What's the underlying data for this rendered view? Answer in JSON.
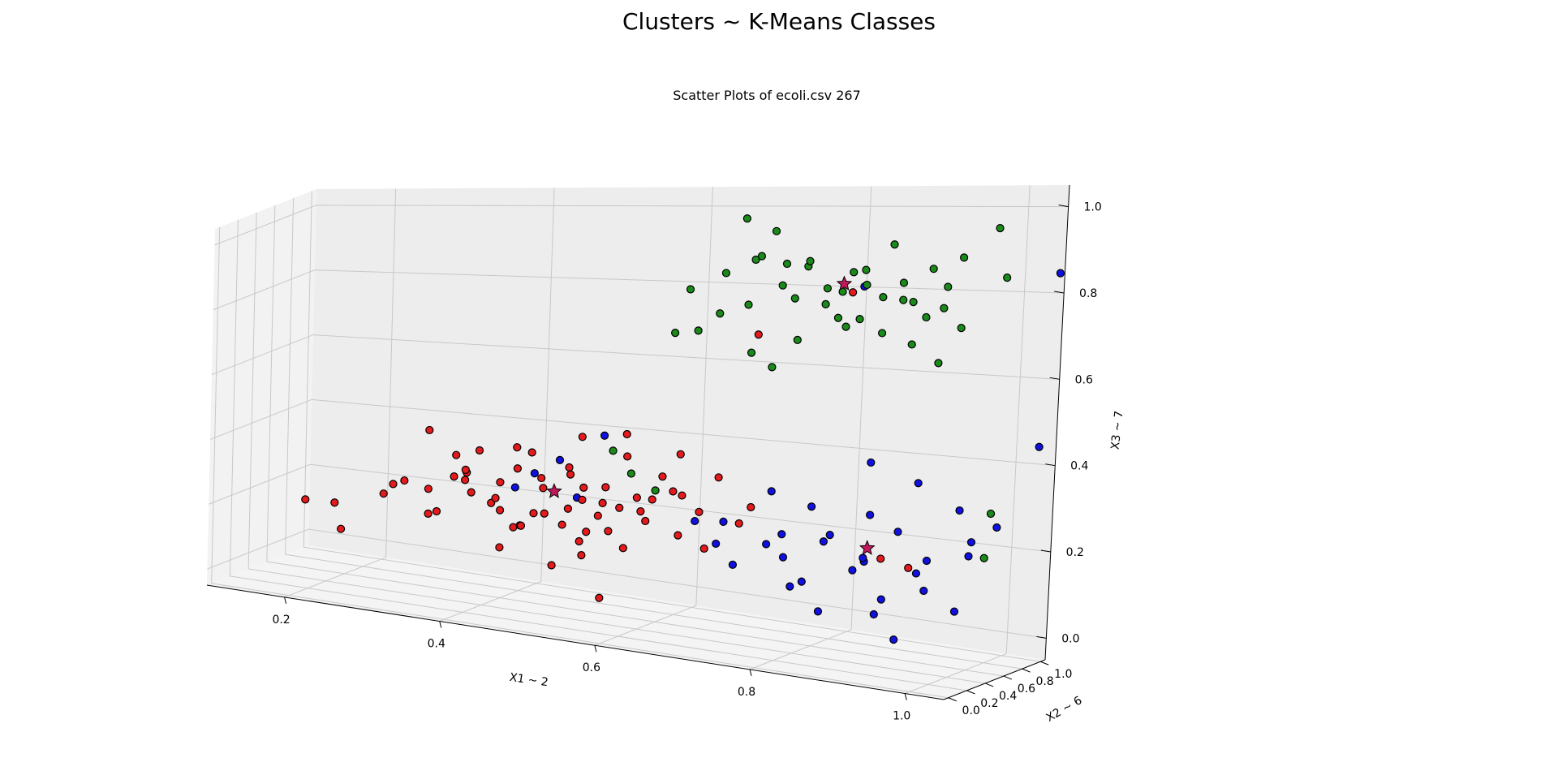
{
  "figure": {
    "title": "Clusters ~ K-Means Classes",
    "subtitle": "Scatter Plots of ecoli.csv 267"
  },
  "chart_data": {
    "type": "scatter",
    "projection": "3d",
    "title": "Scatter Plots of ecoli.csv 267",
    "xlabel": "X1 ~ 2",
    "ylabel": "X2 ~ 6",
    "zlabel": "X3 ~ 7",
    "xlim": [
      0.1,
      1.05
    ],
    "ylim": [
      -0.05,
      1.05
    ],
    "zlim": [
      -0.05,
      1.05
    ],
    "xticks": [
      "0.2",
      "0.4",
      "0.6",
      "0.8",
      "1.0"
    ],
    "yticks": [
      "0.0",
      "0.2",
      "0.4",
      "0.6",
      "0.8",
      "1.0"
    ],
    "zticks": [
      "0.0",
      "0.2",
      "0.4",
      "0.6",
      "0.8",
      "1.0"
    ],
    "grid": true,
    "colors": {
      "cluster_red": "#e41a1c",
      "cluster_green": "#1a8a1a",
      "cluster_blue": "#1010e0",
      "edge": "#000000",
      "pane": "#f2f2f2",
      "grid": "#c8c8c8"
    },
    "series": [
      {
        "color": "#e41a1c",
        "points": [
          [
            0.32,
            0.2,
            0.3
          ],
          [
            0.36,
            0.22,
            0.22
          ],
          [
            0.4,
            0.25,
            0.28
          ],
          [
            0.42,
            0.3,
            0.25
          ],
          [
            0.44,
            0.22,
            0.32
          ],
          [
            0.46,
            0.28,
            0.2
          ],
          [
            0.48,
            0.35,
            0.3
          ],
          [
            0.5,
            0.2,
            0.25
          ],
          [
            0.52,
            0.3,
            0.35
          ],
          [
            0.54,
            0.25,
            0.18
          ],
          [
            0.56,
            0.32,
            0.28
          ],
          [
            0.58,
            0.22,
            0.22
          ],
          [
            0.6,
            0.35,
            0.3
          ],
          [
            0.62,
            0.28,
            0.25
          ],
          [
            0.64,
            0.4,
            0.32
          ],
          [
            0.45,
            0.15,
            0.15
          ],
          [
            0.5,
            0.4,
            0.2
          ],
          [
            0.55,
            0.18,
            0.3
          ],
          [
            0.48,
            0.12,
            0.22
          ],
          [
            0.6,
            0.22,
            0.18
          ],
          [
            0.38,
            0.35,
            0.3
          ],
          [
            0.42,
            0.4,
            0.22
          ],
          [
            0.66,
            0.3,
            0.22
          ],
          [
            0.68,
            0.35,
            0.28
          ],
          [
            0.7,
            0.25,
            0.2
          ],
          [
            0.52,
            0.45,
            0.3
          ],
          [
            0.47,
            0.3,
            0.4
          ],
          [
            0.53,
            0.33,
            0.45
          ],
          [
            0.58,
            0.4,
            0.4
          ],
          [
            0.62,
            0.45,
            0.35
          ],
          [
            0.4,
            0.18,
            0.35
          ],
          [
            0.44,
            0.38,
            0.18
          ],
          [
            0.56,
            0.15,
            0.22
          ],
          [
            0.34,
            0.3,
            0.2
          ],
          [
            0.3,
            0.25,
            0.28
          ],
          [
            0.36,
            0.4,
            0.3
          ],
          [
            0.64,
            0.5,
            0.3
          ],
          [
            0.72,
            0.45,
            0.25
          ],
          [
            0.74,
            0.4,
            0.3
          ],
          [
            0.68,
            0.55,
            0.35
          ],
          [
            0.2,
            0.15,
            0.22
          ],
          [
            0.22,
            0.3,
            0.2
          ],
          [
            0.25,
            0.12,
            0.15
          ],
          [
            0.5,
            0.3,
            0.1
          ],
          [
            0.54,
            0.28,
            0.14
          ],
          [
            0.46,
            0.22,
            0.42
          ],
          [
            0.59,
            0.3,
            0.47
          ],
          [
            0.65,
            0.38,
            0.42
          ],
          [
            0.51,
            0.37,
            0.36
          ],
          [
            0.57,
            0.26,
            0.33
          ],
          [
            0.43,
            0.26,
            0.27
          ],
          [
            0.49,
            0.24,
            0.34
          ],
          [
            0.61,
            0.31,
            0.27
          ],
          [
            0.53,
            0.2,
            0.27
          ],
          [
            0.47,
            0.34,
            0.23
          ],
          [
            0.55,
            0.36,
            0.24
          ],
          [
            0.39,
            0.28,
            0.33
          ],
          [
            0.63,
            0.26,
            0.31
          ],
          [
            0.57,
            0.42,
            0.26
          ],
          [
            0.45,
            0.32,
            0.35
          ],
          [
            0.58,
            0.15,
            0.05
          ],
          [
            0.95,
            0.35,
            0.2
          ],
          [
            0.92,
            0.3,
            0.22
          ],
          [
            0.7,
            0.75,
            0.7
          ],
          [
            0.8,
            0.9,
            0.8
          ],
          [
            0.35,
            0.2,
            0.45
          ],
          [
            0.41,
            0.24,
            0.4
          ],
          [
            0.37,
            0.33,
            0.37
          ],
          [
            0.33,
            0.38,
            0.26
          ],
          [
            0.28,
            0.32,
            0.24
          ]
        ]
      },
      {
        "color": "#1a8a1a",
        "points": [
          [
            0.6,
            0.85,
            0.8
          ],
          [
            0.65,
            0.8,
            0.85
          ],
          [
            0.7,
            0.75,
            0.9
          ],
          [
            0.75,
            0.85,
            0.88
          ],
          [
            0.8,
            0.9,
            0.85
          ],
          [
            0.85,
            0.8,
            0.8
          ],
          [
            0.9,
            0.85,
            0.75
          ],
          [
            0.95,
            0.8,
            0.9
          ],
          [
            1.0,
            0.85,
            0.85
          ],
          [
            0.7,
            0.9,
            0.95
          ],
          [
            0.75,
            0.7,
            0.8
          ],
          [
            0.8,
            0.75,
            0.75
          ],
          [
            0.85,
            0.9,
            0.92
          ],
          [
            0.65,
            0.75,
            0.75
          ],
          [
            0.9,
            0.7,
            0.8
          ],
          [
            0.72,
            0.82,
            0.82
          ],
          [
            0.78,
            0.78,
            0.78
          ],
          [
            0.82,
            0.86,
            0.86
          ],
          [
            0.88,
            0.76,
            0.84
          ],
          [
            0.68,
            0.86,
            0.88
          ],
          [
            0.62,
            0.78,
            0.7
          ],
          [
            0.74,
            0.92,
            0.86
          ],
          [
            0.86,
            0.72,
            0.72
          ],
          [
            0.92,
            0.9,
            0.82
          ],
          [
            0.76,
            0.66,
            0.7
          ],
          [
            0.84,
            0.64,
            0.76
          ],
          [
            0.96,
            0.72,
            0.74
          ],
          [
            0.7,
            0.68,
            0.66
          ],
          [
            0.66,
            0.92,
            0.98
          ],
          [
            0.98,
            0.92,
            0.96
          ],
          [
            0.8,
            0.84,
            0.72
          ],
          [
            0.88,
            0.88,
            0.68
          ],
          [
            0.94,
            0.66,
            0.66
          ],
          [
            0.6,
            0.7,
            0.7
          ],
          [
            0.72,
            0.74,
            0.62
          ],
          [
            0.77,
            0.88,
            0.81
          ],
          [
            0.83,
            0.79,
            0.83
          ],
          [
            0.91,
            0.82,
            0.87
          ],
          [
            0.73,
            0.77,
            0.88
          ],
          [
            0.87,
            0.85,
            0.79
          ],
          [
            0.55,
            0.5,
            0.4
          ],
          [
            0.6,
            0.55,
            0.3
          ],
          [
            0.58,
            0.45,
            0.35
          ],
          [
            1.0,
            0.8,
            0.3
          ],
          [
            1.0,
            0.75,
            0.2
          ],
          [
            0.68,
            0.8,
            0.77
          ],
          [
            0.81,
            0.7,
            0.82
          ],
          [
            0.93,
            0.78,
            0.78
          ]
        ]
      },
      {
        "color": "#1010e0",
        "points": [
          [
            0.7,
            0.45,
            0.25
          ],
          [
            0.75,
            0.5,
            0.2
          ],
          [
            0.8,
            0.55,
            0.3
          ],
          [
            0.85,
            0.6,
            0.15
          ],
          [
            0.9,
            0.65,
            0.25
          ],
          [
            0.95,
            0.55,
            0.2
          ],
          [
            1.0,
            0.6,
            0.25
          ],
          [
            0.72,
            0.4,
            0.15
          ],
          [
            0.78,
            0.65,
            0.1
          ],
          [
            0.82,
            0.5,
            0.05
          ],
          [
            0.88,
            0.45,
            0.2
          ],
          [
            0.92,
            0.7,
            0.15
          ],
          [
            0.98,
            0.75,
            0.2
          ],
          [
            0.76,
            0.58,
            0.22
          ],
          [
            0.84,
            0.42,
            0.25
          ],
          [
            0.86,
            0.68,
            0.28
          ],
          [
            0.9,
            0.5,
            0.1
          ],
          [
            0.94,
            0.62,
            0.12
          ],
          [
            0.74,
            0.62,
            0.32
          ],
          [
            0.8,
            0.7,
            0.2
          ],
          [
            0.68,
            0.55,
            0.18
          ],
          [
            0.66,
            0.48,
            0.24
          ],
          [
            1.0,
            0.45,
            0.1
          ],
          [
            1.02,
            0.7,
            0.28
          ],
          [
            0.96,
            0.8,
            0.3
          ],
          [
            0.9,
            0.85,
            0.35
          ],
          [
            0.85,
            0.75,
            0.4
          ],
          [
            0.8,
            0.35,
            0.12
          ],
          [
            0.88,
            0.6,
            0.05
          ],
          [
            0.93,
            0.4,
            0.02
          ],
          [
            0.45,
            0.3,
            0.3
          ],
          [
            0.5,
            0.35,
            0.38
          ],
          [
            0.55,
            0.4,
            0.45
          ],
          [
            0.48,
            0.25,
            0.35
          ],
          [
            0.52,
            0.38,
            0.28
          ],
          [
            1.04,
            0.95,
            0.45
          ],
          [
            1.05,
            1.0,
            0.85
          ],
          [
            0.82,
            0.85,
            0.82
          ],
          [
            0.77,
            0.52,
            0.17
          ],
          [
            0.87,
            0.55,
            0.18
          ]
        ]
      }
    ],
    "centroids": [
      {
        "color": "#c2185b",
        "point": [
          0.5,
          0.3,
          0.3
        ]
      },
      {
        "color": "#c2185b",
        "point": [
          0.8,
          0.8,
          0.83
        ]
      },
      {
        "color": "#c2185b",
        "point": [
          0.87,
          0.58,
          0.21
        ]
      }
    ]
  }
}
